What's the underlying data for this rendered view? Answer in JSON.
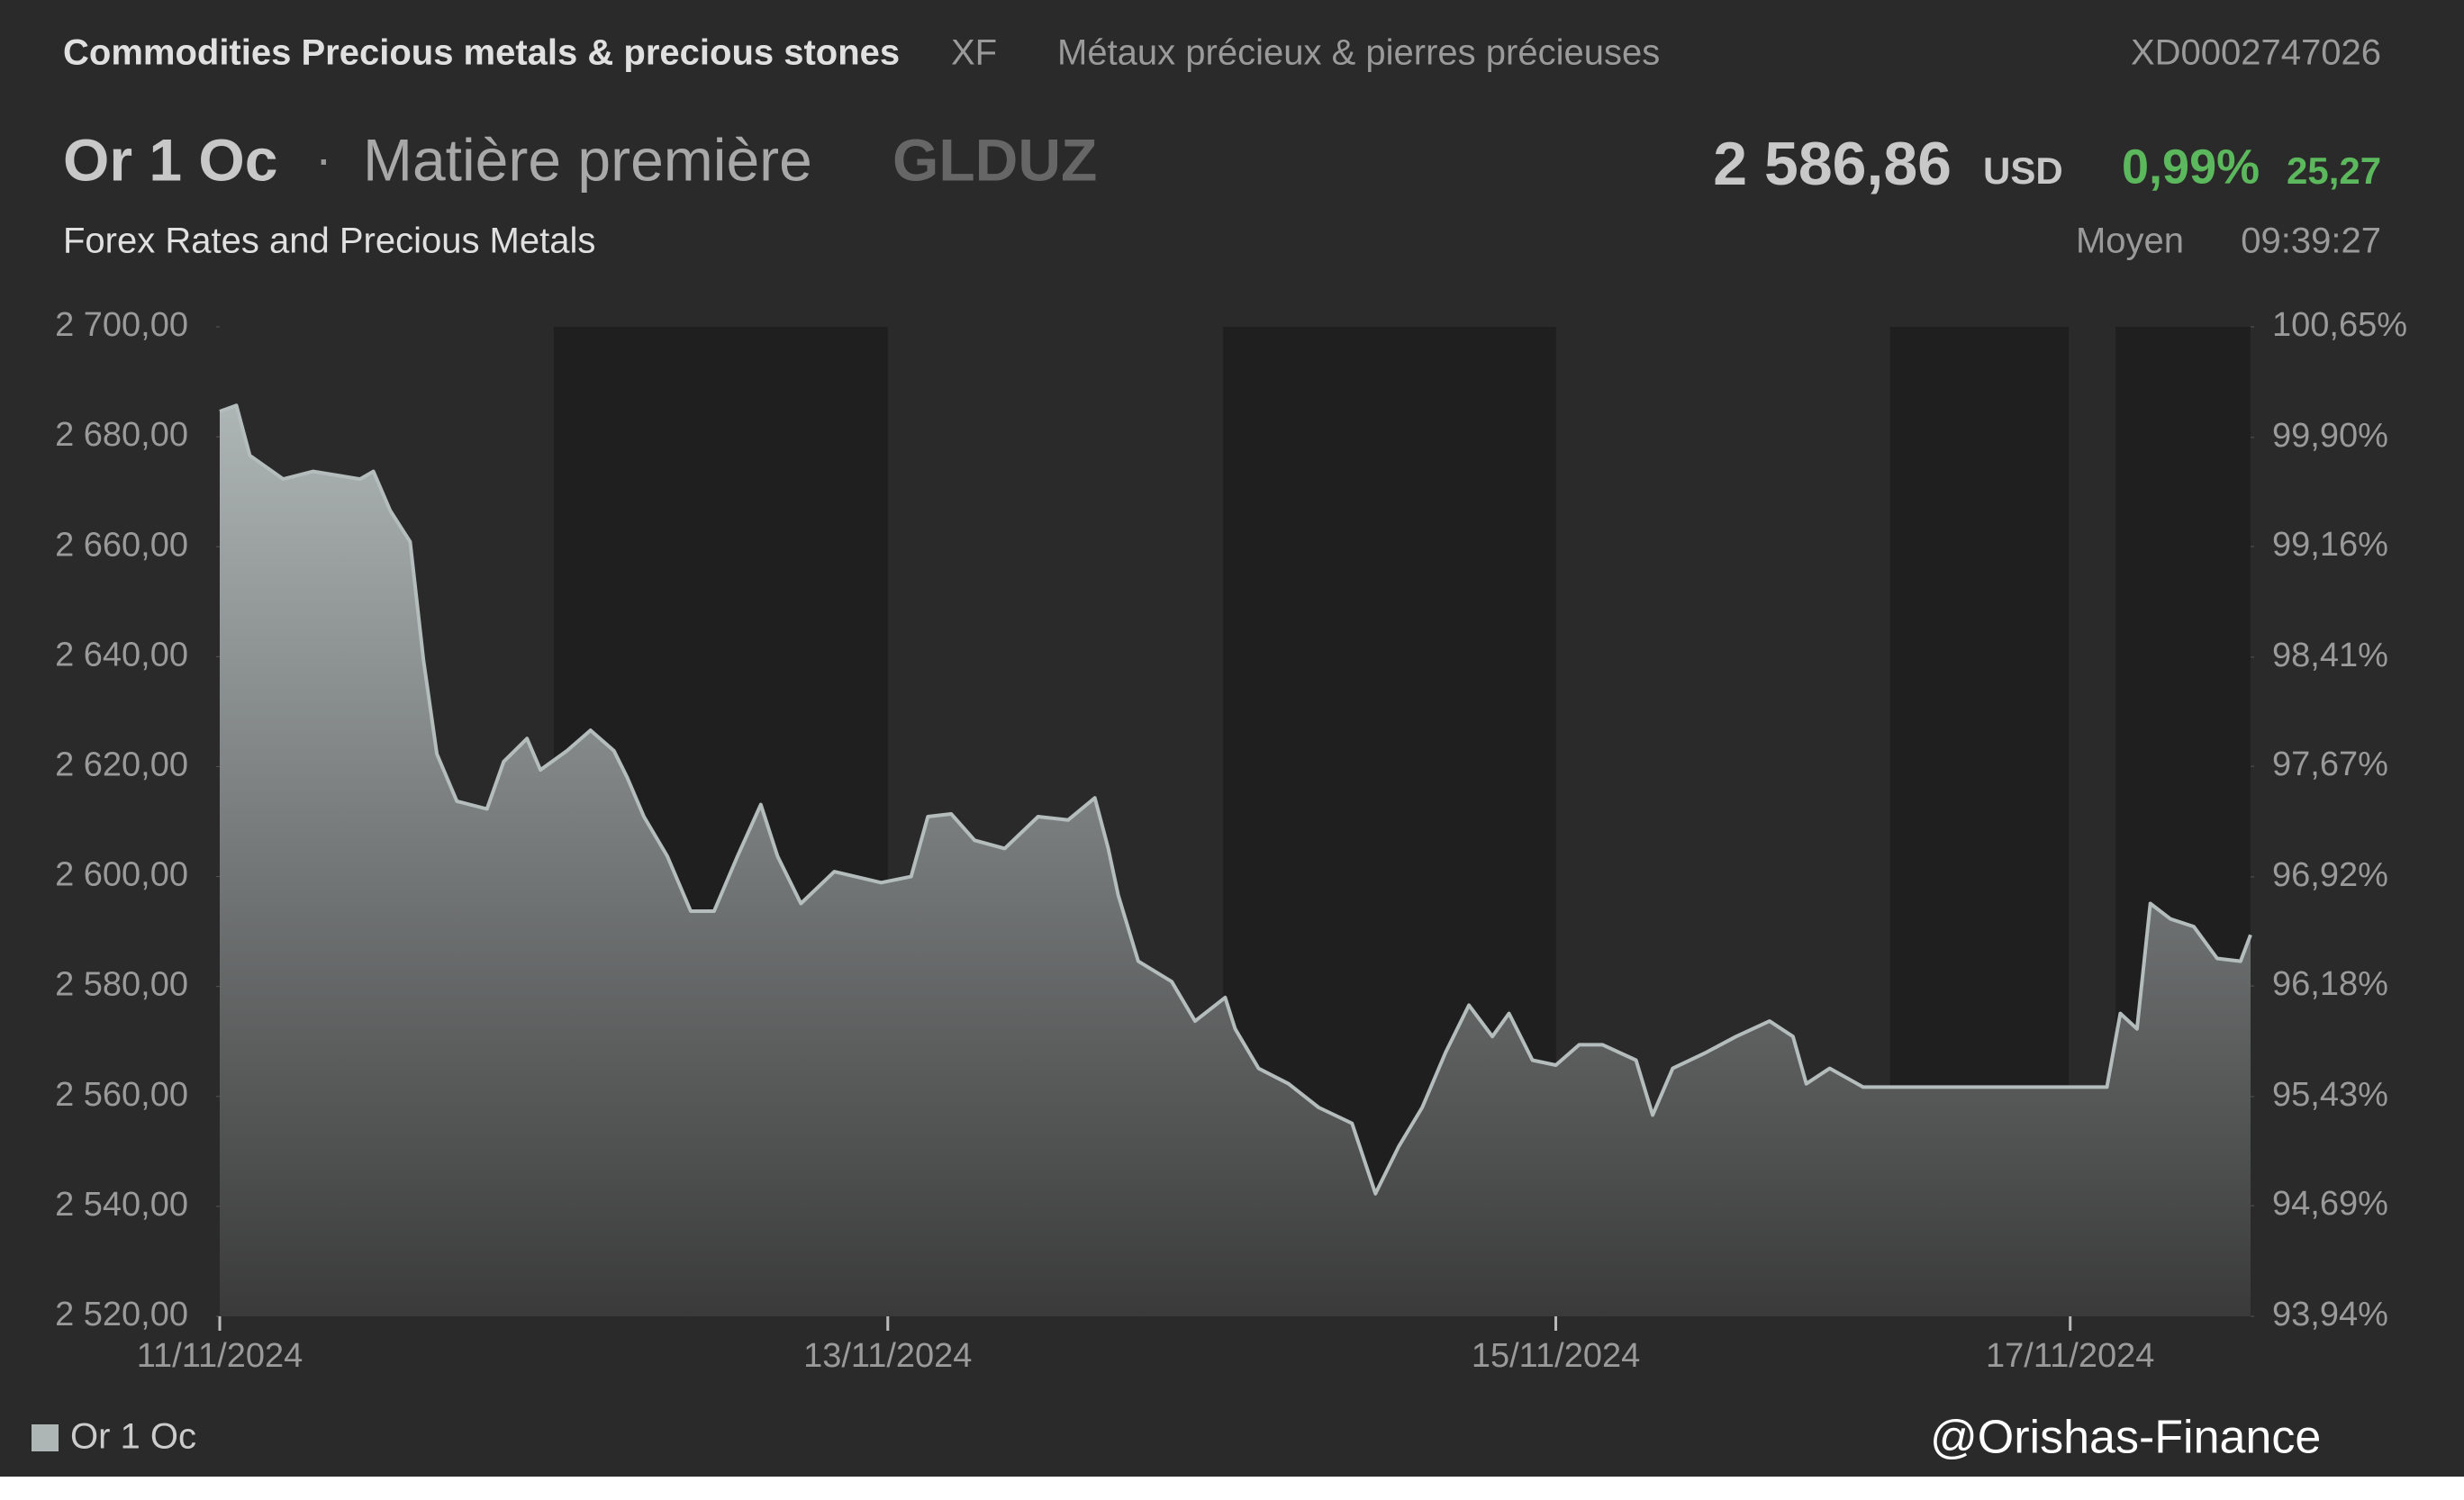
{
  "header": {
    "category": "Commodities Precious metals & precious stones",
    "exchange": "XF",
    "category_fr": "Métaux précieux & pierres précieuses",
    "isin": "XD0002747026",
    "name": "Or 1 Oc",
    "separator": "·",
    "asset_type": "Matière première",
    "ticker": "GLDUZ",
    "price": "2 586,86",
    "currency": "USD",
    "change_pct": "0,99%",
    "change": "25,27",
    "source": "Forex Rates and Precious Metals",
    "price_type": "Moyen",
    "time": "09:39:27"
  },
  "watermark": "@Orishas-Finance",
  "chart_data": {
    "type": "area",
    "x": [
      0,
      0.05,
      0.09,
      0.19,
      0.28,
      0.42,
      0.46,
      0.51,
      0.57,
      0.61,
      0.65,
      0.71,
      0.8,
      0.85,
      0.92,
      0.96,
      1.04,
      1.11,
      1.18,
      1.22,
      1.27,
      1.34,
      1.41,
      1.48,
      1.55,
      1.62,
      1.67,
      1.74,
      1.84,
      1.98,
      2.07,
      2.12,
      2.19,
      2.26,
      2.35,
      2.45,
      2.54,
      2.62,
      2.66,
      2.69,
      2.75,
      2.85,
      2.92,
      3.01,
      3.04,
      3.11,
      3.2,
      3.29,
      3.39,
      3.46,
      3.53,
      3.6,
      3.67,
      3.74,
      3.81,
      3.86,
      3.93,
      4.0,
      4.07,
      4.14,
      4.24,
      4.29,
      4.35,
      4.45,
      4.54,
      4.64,
      4.71,
      4.75,
      4.82,
      4.92,
      5.65,
      5.69,
      5.74,
      5.78,
      5.84,
      5.91,
      5.98,
      6.05,
      6.08
    ],
    "series": [
      {
        "name": "Or 1 Oc",
        "color": "#b4bcbc",
        "values": [
          2684.6,
          2685.7,
          2676.6,
          2672.3,
          2673.7,
          2672.3,
          2673.7,
          2666.6,
          2660.9,
          2639.4,
          2622.3,
          2613.7,
          2612.3,
          2620.9,
          2625.1,
          2619.4,
          2622.9,
          2626.6,
          2622.9,
          2618.0,
          2610.9,
          2603.7,
          2593.7,
          2593.7,
          2603.7,
          2613.1,
          2603.7,
          2595.1,
          2600.9,
          2598.9,
          2600.0,
          2610.9,
          2611.4,
          2606.6,
          2605.1,
          2610.9,
          2610.3,
          2614.3,
          2605.1,
          2596.6,
          2584.6,
          2580.9,
          2573.7,
          2578.0,
          2572.3,
          2565.1,
          2562.3,
          2558.0,
          2555.1,
          2542.3,
          2550.9,
          2558.0,
          2568.0,
          2576.6,
          2570.9,
          2575.1,
          2566.6,
          2565.7,
          2569.4,
          2569.4,
          2566.6,
          2556.6,
          2565.1,
          2568.0,
          2570.9,
          2573.7,
          2570.9,
          2562.3,
          2565.1,
          2561.7,
          2561.7,
          2575.1,
          2572.3,
          2595.1,
          2592.3,
          2590.9,
          2585.1,
          2584.6,
          2589.4
        ]
      }
    ],
    "xlim": [
      0,
      6.08
    ],
    "xticks": [
      {
        "value": 0,
        "label": "11/11/2024"
      },
      {
        "value": 2,
        "label": "13/11/2024"
      },
      {
        "value": 4,
        "label": "15/11/2024"
      },
      {
        "value": 5.54,
        "label": "17/11/2024"
      }
    ],
    "ylim": [
      2520,
      2700
    ],
    "yticks": [
      {
        "value": 2520,
        "label": "2 520,00"
      },
      {
        "value": 2540,
        "label": "2 540,00"
      },
      {
        "value": 2560,
        "label": "2 560,00"
      },
      {
        "value": 2580,
        "label": "2 580,00"
      },
      {
        "value": 2600,
        "label": "2 600,00"
      },
      {
        "value": 2620,
        "label": "2 620,00"
      },
      {
        "value": 2640,
        "label": "2 640,00"
      },
      {
        "value": 2660,
        "label": "2 660,00"
      },
      {
        "value": 2680,
        "label": "2 680,00"
      },
      {
        "value": 2700,
        "label": "2 700,00"
      }
    ],
    "y2lim": [
      93.94,
      100.65
    ],
    "y2ticks": [
      {
        "value": 93.94,
        "label": "93,94%"
      },
      {
        "value": 94.69,
        "label": "94,69%"
      },
      {
        "value": 95.43,
        "label": "95,43%"
      },
      {
        "value": 96.18,
        "label": "96,18%"
      },
      {
        "value": 96.92,
        "label": "96,92%"
      },
      {
        "value": 97.67,
        "label": "97,67%"
      },
      {
        "value": 98.41,
        "label": "98,41%"
      },
      {
        "value": 99.16,
        "label": "99,16%"
      },
      {
        "value": 99.9,
        "label": "99,90%"
      },
      {
        "value": 100.65,
        "label": "100,65%"
      }
    ],
    "legend": "bottom-left"
  }
}
